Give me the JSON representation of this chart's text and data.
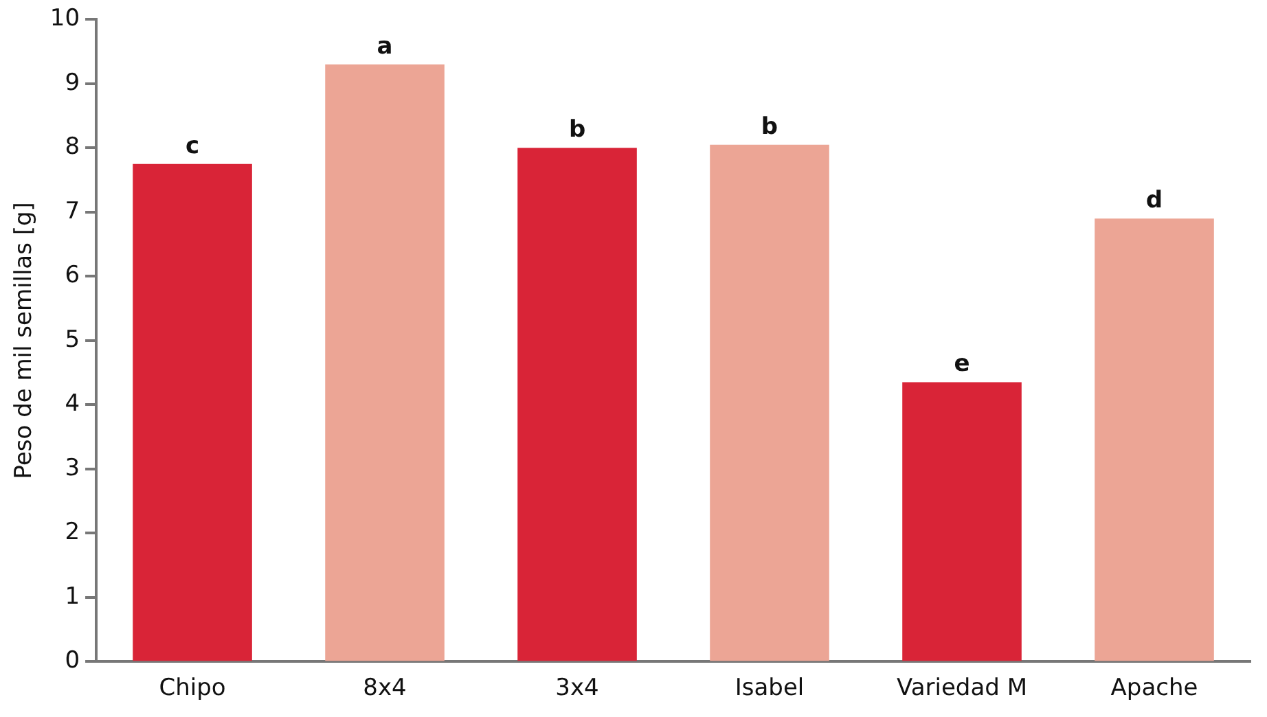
{
  "chart_data": {
    "type": "bar",
    "ylabel": "Peso de mil semillas [g]",
    "categories": [
      "Chipo",
      "8x4",
      "3x4",
      "Isabel",
      "Variedad M",
      "Apache"
    ],
    "values": [
      7.75,
      9.3,
      8.0,
      8.05,
      4.35,
      6.9
    ],
    "colors": [
      "#d92437",
      "#eca595",
      "#d92437",
      "#eca595",
      "#d92437",
      "#eca595"
    ],
    "ylim": [
      0,
      10
    ],
    "yticks": [
      0,
      1,
      2,
      3,
      4,
      5,
      6,
      7,
      8,
      9,
      10
    ],
    "grid": false,
    "legend": false,
    "annotations": [
      {
        "text": "c",
        "x": "Chipo",
        "y": 7.75
      },
      {
        "text": "a",
        "x": "8x4",
        "y": 9.3
      },
      {
        "text": "b",
        "x": "3x4",
        "y": 8.0
      },
      {
        "text": "b",
        "x": "Isabel",
        "y": 8.05
      },
      {
        "text": "e",
        "x": "Variedad M",
        "y": 4.35
      },
      {
        "text": "d",
        "x": "Apache",
        "y": 6.9
      }
    ]
  }
}
